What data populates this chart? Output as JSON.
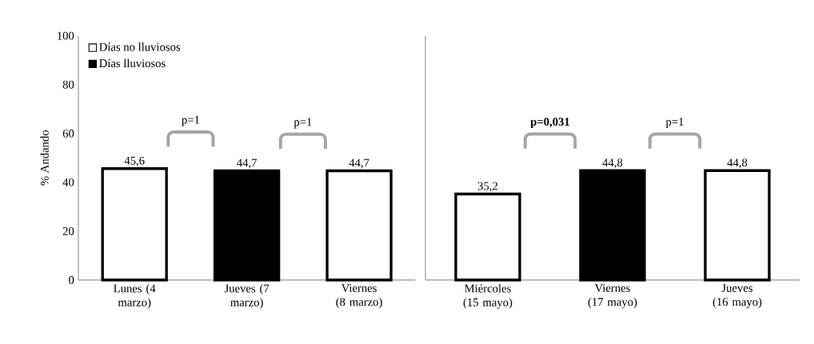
{
  "chart_data": [
    {
      "type": "bar",
      "ylabel": "% Andando",
      "categories": [
        "Lunes (4 marzo)",
        "Jueves (7 marzo)",
        "Viernes (8 marzo)"
      ],
      "series": [
        {
          "name": "Días no lluviosos",
          "color": "#ffffff",
          "values": [
            45.6,
            null,
            44.7
          ],
          "value_labels": [
            "45,6",
            null,
            "44,7"
          ]
        },
        {
          "name": "Días lluviosos",
          "color": "#000000",
          "values": [
            null,
            44.7,
            null
          ],
          "value_labels": [
            null,
            "44,7",
            null
          ]
        }
      ],
      "ylim": [
        0,
        100
      ],
      "yticks": [
        0,
        20,
        40,
        60,
        80,
        100
      ],
      "legend": "top left",
      "annotations": [
        "p=1",
        "p=1"
      ]
    },
    {
      "type": "bar",
      "categories": [
        "Miércoles (15 mayo)",
        "Viernes (17 mayo)",
        "Jueves (16 mayo)"
      ],
      "series": [
        {
          "color": "#ffffff",
          "values": [
            35.2,
            null,
            44.8
          ],
          "value_labels": [
            "35,2",
            null,
            "44,8"
          ]
        },
        {
          "color": "#000000",
          "values": [
            null,
            44.8,
            null
          ],
          "value_labels": [
            null,
            "44,8",
            null
          ]
        }
      ],
      "ylim": [
        0,
        100
      ],
      "yticks": [
        0,
        20,
        40,
        60,
        80,
        100
      ],
      "tick_labels": "x",
      "annotations": [
        "**p=0,031**",
        "p=1"
      ]
    }
  ]
}
